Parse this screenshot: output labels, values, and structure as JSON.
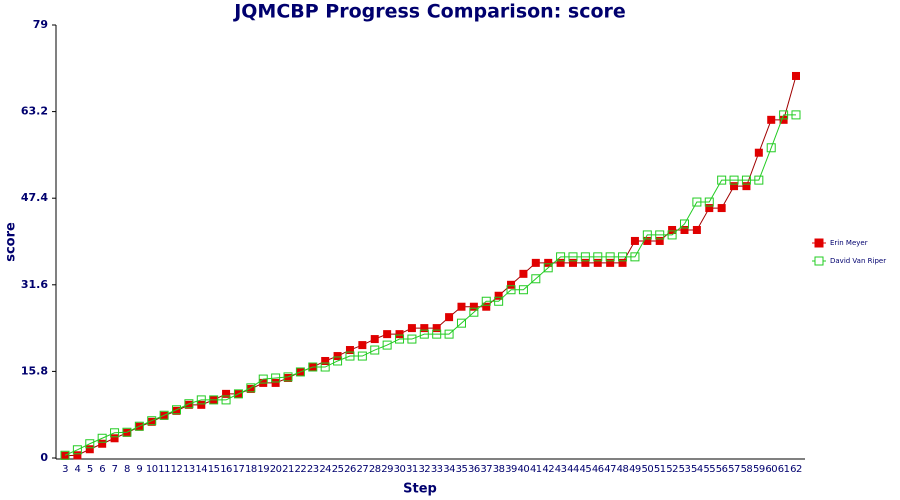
{
  "chart_data": {
    "type": "line",
    "title": "JQMCBP Progress Comparison: score",
    "x_label": "Step",
    "y_label": "score",
    "categories": [
      "3",
      "4",
      "5",
      "6",
      "7",
      "8",
      "9",
      "10",
      "11",
      "12",
      "13",
      "14",
      "15",
      "16",
      "17",
      "18",
      "19",
      "20",
      "21",
      "22",
      "23",
      "24",
      "25",
      "26",
      "27",
      "28",
      "29",
      "30",
      "31",
      "32",
      "33",
      "34",
      "35",
      "36",
      "37",
      "38",
      "39",
      "40",
      "41",
      "42",
      "43",
      "44",
      "45",
      "46",
      "47",
      "48",
      "49",
      "50",
      "51",
      "52",
      "53",
      "54",
      "55",
      "56",
      "57",
      "58",
      "59",
      "60",
      "61",
      "62"
    ],
    "ylim": [
      0,
      79
    ],
    "yticks": [
      0,
      15.8,
      31.6,
      47.4,
      63.2,
      79
    ],
    "legend": "right",
    "series": [
      {
        "name": "Erin Meyer",
        "color": "#e00000",
        "marker": "filled-square",
        "values": [
          0.4,
          0.5,
          1.6,
          2.6,
          3.6,
          4.6,
          5.7,
          6.6,
          7.7,
          8.6,
          9.7,
          9.7,
          10.6,
          11.7,
          11.7,
          12.6,
          13.7,
          13.7,
          14.6,
          15.7,
          16.6,
          17.7,
          18.6,
          19.7,
          20.6,
          21.7,
          22.6,
          22.6,
          23.7,
          23.7,
          23.7,
          25.7,
          27.6,
          27.6,
          27.6,
          29.6,
          31.6,
          33.6,
          35.6,
          35.6,
          35.6,
          35.6,
          35.6,
          35.6,
          35.6,
          35.6,
          39.6,
          39.6,
          39.6,
          41.6,
          41.6,
          41.6,
          45.6,
          45.6,
          49.6,
          49.6,
          55.7,
          61.7,
          61.7,
          69.7
        ]
      },
      {
        "name": "David Van Riper",
        "color": "#22cc22",
        "marker": "open-square",
        "values": [
          0.5,
          1.5,
          2.6,
          3.6,
          4.6,
          4.7,
          5.8,
          6.8,
          7.8,
          8.8,
          9.9,
          10.6,
          10.6,
          10.6,
          11.7,
          12.8,
          14.4,
          14.6,
          14.8,
          15.7,
          16.6,
          16.6,
          17.7,
          18.6,
          18.6,
          19.7,
          20.6,
          21.7,
          21.7,
          22.6,
          22.6,
          22.6,
          24.6,
          26.6,
          28.6,
          28.6,
          30.7,
          30.7,
          32.7,
          34.7,
          36.7,
          36.7,
          36.7,
          36.7,
          36.7,
          36.7,
          36.7,
          40.7,
          40.7,
          40.7,
          42.7,
          46.7,
          46.7,
          50.7,
          50.7,
          50.7,
          50.7,
          56.6,
          62.6,
          62.6
        ]
      }
    ]
  }
}
